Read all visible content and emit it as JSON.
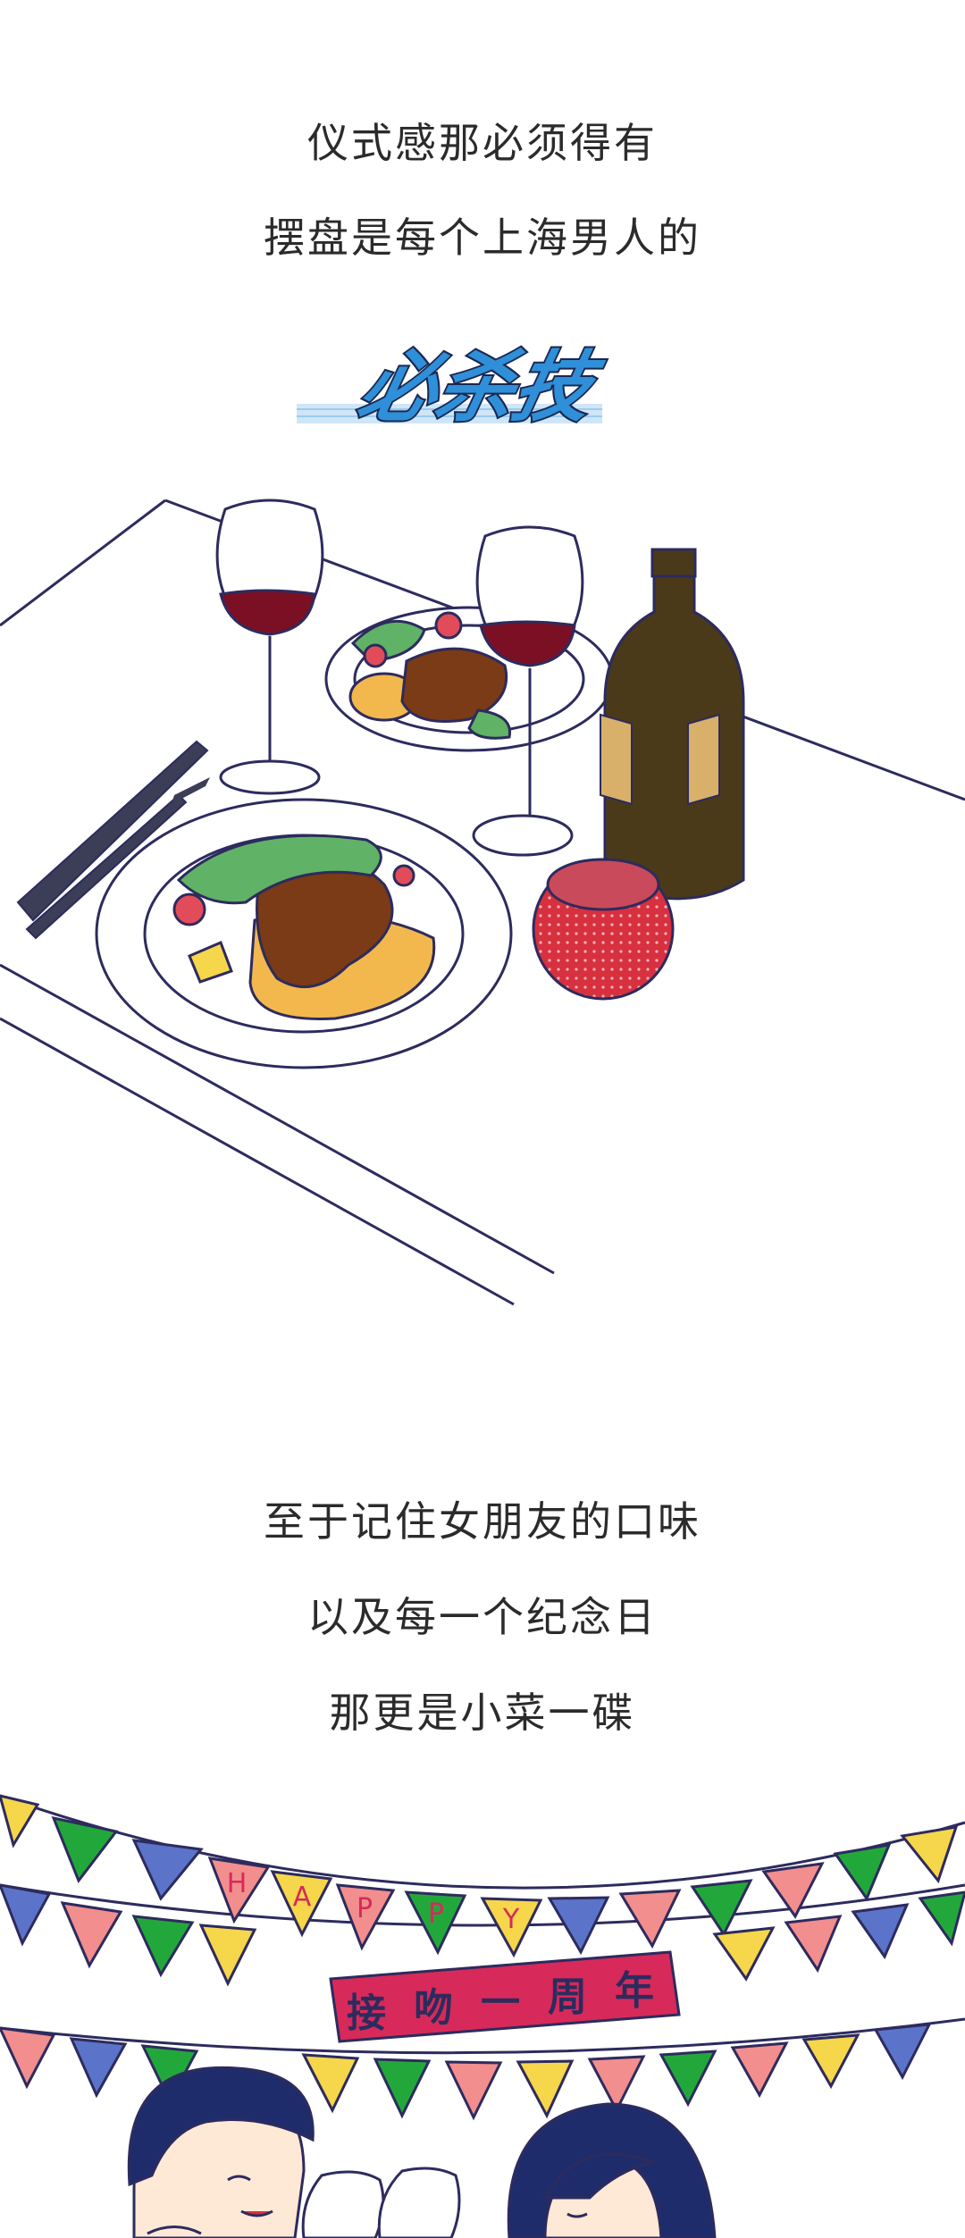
{
  "intro": {
    "line1": "仪式感那必须得有",
    "line2": "摆盘是每个上海男人的"
  },
  "badge": {
    "text": "必杀技"
  },
  "outro": {
    "line1": "至于记住女朋友的口味",
    "line2": "以及每一个纪念日",
    "line3": "那更是小菜一碟"
  },
  "banner": {
    "happy_letters": [
      "H",
      "A",
      "P",
      "P",
      "Y"
    ],
    "anniversary_chars": [
      "接",
      "吻",
      "一",
      "周",
      "年"
    ]
  },
  "colors": {
    "ink": "#2d2b5e",
    "wine": "#7b0f24",
    "badge_blue": "#2f8fd8",
    "flag_green": "#22a83a",
    "flag_pink": "#f28e8e",
    "flag_yellow": "#f6d64a",
    "flag_blue": "#5b74c9",
    "ribbon_red": "#d72a5a"
  }
}
